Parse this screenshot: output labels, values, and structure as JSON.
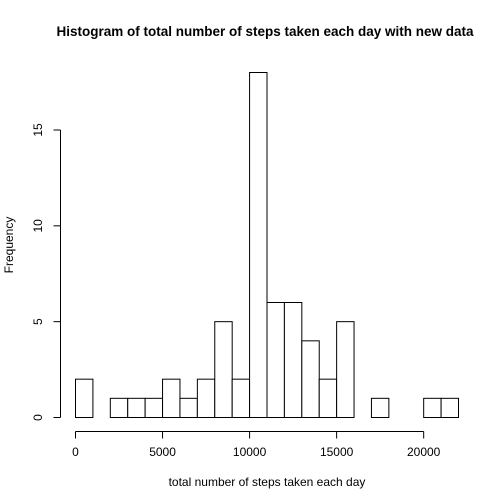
{
  "chart_data": {
    "type": "bar",
    "title": "Histogram of total number of steps taken each day with new data",
    "xlabel": "total number of steps taken each day",
    "ylabel": "Frequency",
    "bin_width": 1000,
    "bins_start": [
      0,
      1000,
      2000,
      3000,
      4000,
      5000,
      6000,
      7000,
      8000,
      9000,
      10000,
      11000,
      12000,
      13000,
      14000,
      15000,
      16000,
      17000,
      18000,
      19000,
      20000,
      21000
    ],
    "values": [
      2,
      0,
      1,
      1,
      1,
      2,
      1,
      2,
      5,
      2,
      18,
      6,
      6,
      4,
      2,
      5,
      0,
      1,
      0,
      0,
      1,
      1
    ],
    "xlim": [
      0,
      22000
    ],
    "ylim": [
      0,
      18
    ],
    "x_ticks": [
      0,
      5000,
      10000,
      15000,
      20000
    ],
    "x_tick_labels": [
      "0",
      "5000",
      "10000",
      "15000",
      "20000"
    ],
    "y_ticks": [
      0,
      5,
      10,
      15
    ],
    "y_tick_labels": [
      "0",
      "5",
      "10",
      "15"
    ],
    "grid": false,
    "colors": {
      "bar_fill": "#ffffff",
      "bar_stroke": "#000000"
    }
  }
}
